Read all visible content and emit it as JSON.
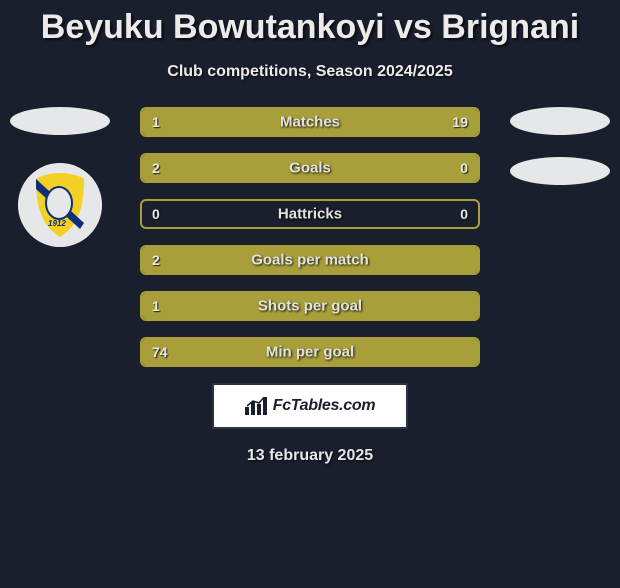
{
  "title": "Beyuku Bowutankoyi vs Brignani",
  "subtitle": "Club competitions, Season 2024/2025",
  "date": "13 february 2025",
  "footer_brand": "FcTables.com",
  "colors": {
    "background": "#1a1f2e",
    "left_player": "#a89f3a",
    "right_player": "#a89f3a",
    "row_border": "#a89f3a",
    "text": "#e8e8e6",
    "badge_bg": "#ffffff"
  },
  "left_logo": {
    "shield_fill": "#f2d024",
    "shield_band": "#0f2f78",
    "year": "1912"
  },
  "rows": [
    {
      "label": "Matches",
      "left": "1",
      "right": "19",
      "left_fill_pct": 10,
      "right_fill_pct": 90
    },
    {
      "label": "Goals",
      "left": "2",
      "right": "0",
      "left_fill_pct": 78,
      "right_fill_pct": 22
    },
    {
      "label": "Hattricks",
      "left": "0",
      "right": "0",
      "left_fill_pct": 0,
      "right_fill_pct": 0
    },
    {
      "label": "Goals per match",
      "left": "2",
      "right": "",
      "left_fill_pct": 100,
      "right_fill_pct": 0
    },
    {
      "label": "Shots per goal",
      "left": "1",
      "right": "",
      "left_fill_pct": 100,
      "right_fill_pct": 0
    },
    {
      "label": "Min per goal",
      "left": "74",
      "right": "",
      "left_fill_pct": 100,
      "right_fill_pct": 0
    }
  ]
}
